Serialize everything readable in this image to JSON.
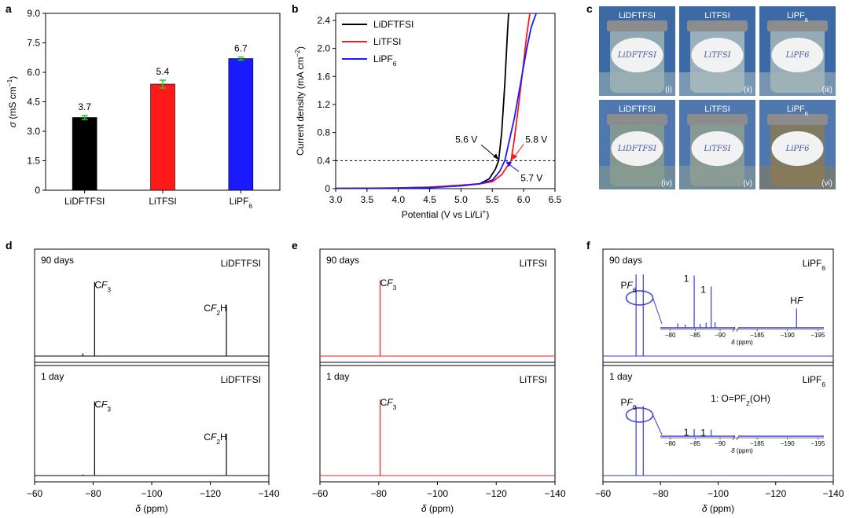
{
  "colors": {
    "black": "#000000",
    "red": "#ff1a1a",
    "blue": "#1a1aff",
    "green": "#17d417",
    "nmr_blue": "#3a3ad8"
  },
  "panels": {
    "a": "a",
    "b": "b",
    "c": "c",
    "d": "d",
    "e": "e",
    "f": "f"
  },
  "chart_data": [
    {
      "id": "a",
      "type": "bar",
      "categories": [
        "LiDFTFSI",
        "LiTFSI",
        "LiPF6"
      ],
      "category_labels": [
        {
          "main": "LiDFTFSI",
          "sub": ""
        },
        {
          "main": "LiTFSI",
          "sub": ""
        },
        {
          "main": "LiPF",
          "sub": "6"
        }
      ],
      "values": [
        3.7,
        5.4,
        6.7
      ],
      "value_labels": [
        "3.7",
        "5.4",
        "6.7"
      ],
      "errors": [
        0.1,
        0.2,
        0.08
      ],
      "bar_colors": [
        "#000000",
        "#ff1a1a",
        "#1a1aff"
      ],
      "ylabel": {
        "sym": "σ",
        "unit": " (mS cm",
        "sup": "−1",
        "close": ")"
      },
      "ylim": [
        0,
        9.0
      ],
      "yticks": [
        0,
        1.5,
        3.0,
        4.5,
        6.0,
        7.5,
        9.0
      ],
      "ytick_labels": [
        "0",
        "1.5",
        "3.0",
        "4.5",
        "6.0",
        "7.5",
        "9.0"
      ]
    },
    {
      "id": "b",
      "type": "line",
      "xlabel": {
        "main": "Potential (V vs Li/Li",
        "sup": "+",
        "close": ")"
      },
      "ylabel": {
        "main": "Current density (mA cm",
        "sup": "−2",
        "close": ")"
      },
      "xlim": [
        3.0,
        6.5
      ],
      "ylim": [
        0,
        2.5
      ],
      "xticks": [
        3.0,
        3.5,
        4.0,
        4.5,
        5.0,
        5.5,
        6.0,
        6.5
      ],
      "xtick_labels": [
        "3.0",
        "3.5",
        "4.0",
        "4.5",
        "5.0",
        "5.5",
        "6.0",
        "6.5"
      ],
      "yticks": [
        0,
        0.4,
        0.8,
        1.2,
        1.6,
        2.0,
        2.4
      ],
      "ytick_labels": [
        "0",
        "0.4",
        "0.8",
        "1.2",
        "1.6",
        "2.0",
        "2.4"
      ],
      "legend": [
        {
          "main": "LiDFTFSI",
          "sub": ""
        },
        {
          "main": "LiTFSI",
          "sub": ""
        },
        {
          "main": "LiPF",
          "sub": "6"
        }
      ],
      "series": [
        {
          "name": "LiDFTFSI",
          "color": "#000000",
          "points": [
            [
              3.0,
              0.005
            ],
            [
              4.0,
              0.01
            ],
            [
              4.5,
              0.02
            ],
            [
              5.0,
              0.04
            ],
            [
              5.3,
              0.07
            ],
            [
              5.45,
              0.14
            ],
            [
              5.55,
              0.28
            ],
            [
              5.6,
              0.4
            ],
            [
              5.65,
              0.8
            ],
            [
              5.7,
              1.5
            ],
            [
              5.74,
              2.2
            ],
            [
              5.76,
              2.5
            ]
          ]
        },
        {
          "name": "LiTFSI",
          "color": "#ff1a1a",
          "points": [
            [
              3.0,
              0.002
            ],
            [
              4.0,
              0.008
            ],
            [
              4.5,
              0.02
            ],
            [
              5.0,
              0.05
            ],
            [
              5.3,
              0.07
            ],
            [
              5.5,
              0.1
            ],
            [
              5.65,
              0.2
            ],
            [
              5.8,
              0.4
            ],
            [
              5.85,
              0.7
            ],
            [
              5.92,
              1.2
            ],
            [
              6.0,
              1.8
            ],
            [
              6.05,
              2.2
            ],
            [
              6.1,
              2.5
            ]
          ]
        },
        {
          "name": "LiPF6",
          "color": "#1a1aff",
          "points": [
            [
              3.0,
              0.001
            ],
            [
              4.0,
              0.006
            ],
            [
              4.5,
              0.015
            ],
            [
              5.0,
              0.04
            ],
            [
              5.3,
              0.07
            ],
            [
              5.5,
              0.12
            ],
            [
              5.62,
              0.25
            ],
            [
              5.7,
              0.4
            ],
            [
              5.75,
              0.6
            ],
            [
              5.85,
              1.0
            ],
            [
              5.95,
              1.5
            ],
            [
              6.05,
              2.0
            ],
            [
              6.12,
              2.3
            ],
            [
              6.2,
              2.5
            ]
          ]
        }
      ],
      "threshold": 0.4,
      "annotations": [
        {
          "text": "5.6 V",
          "x": 5.6,
          "color": "#000000"
        },
        {
          "text": "5.8 V",
          "x": 5.8,
          "color": "#ff1a1a"
        },
        {
          "text": "5.7 V",
          "x": 5.7,
          "color": "#1a1aff"
        }
      ]
    },
    {
      "id": "c",
      "type": "image_grid",
      "tiles": [
        {
          "label": "LiDFTFSI",
          "sub": "",
          "numeral": "(i)",
          "note": "LiDFTFSI",
          "tint": "#9fb3b3"
        },
        {
          "label": "LiTFSI",
          "sub": "",
          "numeral": "(ii)",
          "note": "LiTFSI",
          "tint": "#a9bcbd"
        },
        {
          "label": "LiPF",
          "sub": "6",
          "numeral": "(iii)",
          "note": "LiPF6",
          "tint": "#a4b7b8"
        },
        {
          "label": "LiDFTFSI",
          "sub": "",
          "numeral": "(iv)",
          "note": "LiDFTFSI",
          "tint": "#8a9c8e"
        },
        {
          "label": "LiTFSI",
          "sub": "",
          "numeral": "(v)",
          "note": "LiTFSI",
          "tint": "#8f9f93"
        },
        {
          "label": "LiPF",
          "sub": "6",
          "numeral": "(vi)",
          "note": "LiPF6",
          "tint": "#8a7a55"
        }
      ]
    },
    {
      "id": "d",
      "type": "spectrum",
      "xlabel": "δ (ppm)",
      "xlim": [
        -60,
        -140
      ],
      "xticks": [
        -60,
        -80,
        -100,
        -120,
        -140
      ],
      "xtick_labels": [
        "−60",
        "−80",
        "−100",
        "−120",
        "−140"
      ],
      "color": "#000000",
      "subpanels": [
        {
          "time": "90 days",
          "salt": {
            "main": "LiDFTFSI",
            "sub": ""
          },
          "peaks": [
            {
              "x": -80.5,
              "h": 0.8,
              "label": {
                "pre": "C",
                "it": "F",
                "sub": "3",
                "post": ""
              }
            },
            {
              "x": -125.5,
              "h": 0.55,
              "label": {
                "pre": "C",
                "it": "F",
                "sub": "2",
                "post": "H"
              }
            },
            {
              "x": -76.5,
              "h": 0.03,
              "label": null
            }
          ]
        },
        {
          "time": "1 day",
          "salt": {
            "main": "LiDFTFSI",
            "sub": ""
          },
          "peaks": [
            {
              "x": -80.5,
              "h": 0.8,
              "label": {
                "pre": "C",
                "it": "F",
                "sub": "3",
                "post": ""
              }
            },
            {
              "x": -125.5,
              "h": 0.45,
              "label": {
                "pre": "C",
                "it": "F",
                "sub": "2",
                "post": "H"
              }
            },
            {
              "x": -76.5,
              "h": 0.01,
              "label": null
            }
          ]
        }
      ]
    },
    {
      "id": "e",
      "type": "spectrum",
      "xlabel": "δ (ppm)",
      "xlim": [
        -60,
        -140
      ],
      "xticks": [
        -60,
        -80,
        -100,
        -120,
        -140
      ],
      "xtick_labels": [
        "−60",
        "−80",
        "−100",
        "−120",
        "−140"
      ],
      "color": "#ff1a1a",
      "subpanels": [
        {
          "time": "90 days",
          "salt": {
            "main": "LiTFSI",
            "sub": ""
          },
          "peaks": [
            {
              "x": -80.5,
              "h": 0.82,
              "label": {
                "pre": "C",
                "it": "F",
                "sub": "3",
                "post": ""
              }
            }
          ]
        },
        {
          "time": "1 day",
          "salt": {
            "main": "LiTFSI",
            "sub": ""
          },
          "peaks": [
            {
              "x": -80.5,
              "h": 0.82,
              "label": {
                "pre": "C",
                "it": "F",
                "sub": "3",
                "post": ""
              }
            }
          ]
        }
      ]
    },
    {
      "id": "f",
      "type": "spectrum",
      "xlabel": "δ (ppm)",
      "xlim": [
        -60,
        -140
      ],
      "xticks": [
        -60,
        -80,
        -100,
        -120,
        -140
      ],
      "xtick_labels": [
        "−60",
        "−80",
        "−100",
        "−120",
        "−140"
      ],
      "color": "#3a3ad8",
      "legend_note": {
        "pre": "1: O=PF",
        "sub": "2",
        "post": "(OH)"
      },
      "subpanels": [
        {
          "time": "90 days",
          "salt": {
            "main": "LiPF",
            "sub": "6"
          },
          "pf6_label": {
            "pre": "P",
            "it": "F",
            "sub": "6"
          },
          "peaks": [
            {
              "x": -71.5,
              "h": 0.88
            },
            {
              "x": -74.0,
              "h": 0.88
            }
          ],
          "inset": {
            "xlim_left": [
              -78,
              -93
            ],
            "xlim_right": [
              -182,
              -196
            ],
            "xticks_left": [
              -80,
              -85,
              -90
            ],
            "xtick_labels_left": [
              "−80",
              "−85",
              "−90"
            ],
            "xticks_right": [
              -185,
              -190,
              -195
            ],
            "xtick_labels_right": [
              "−185",
              "−190",
              "−195"
            ],
            "xlabel": "δ (ppm)",
            "peaks": [
              {
                "x": -84.8,
                "h": 0.95,
                "label": "1"
              },
              {
                "x": -88.2,
                "h": 0.75,
                "label": "1"
              },
              {
                "x": -191.5,
                "h": 0.35,
                "label": {
                  "pre": "H",
                  "it": "F"
                }
              },
              {
                "x": -81.5,
                "h": 0.08,
                "label": null
              },
              {
                "x": -83.0,
                "h": 0.06,
                "label": null
              },
              {
                "x": -86.0,
                "h": 0.07,
                "label": null
              },
              {
                "x": -87.2,
                "h": 0.09,
                "label": null
              },
              {
                "x": -89.0,
                "h": 0.1,
                "label": null
              }
            ]
          }
        },
        {
          "time": "1 day",
          "salt": {
            "main": "LiPF",
            "sub": "6"
          },
          "pf6_label": {
            "pre": "P",
            "it": "F",
            "sub": "6"
          },
          "peaks": [
            {
              "x": -71.5,
              "h": 0.75
            },
            {
              "x": -74.0,
              "h": 0.75
            }
          ],
          "inset": {
            "xlim_left": [
              -78,
              -93
            ],
            "xlim_right": [
              -182,
              -196
            ],
            "xticks_left": [
              -80,
              -85,
              -90
            ],
            "xtick_labels_left": [
              "−80",
              "−85",
              "−90"
            ],
            "xticks_right": [
              -185,
              -190,
              -195
            ],
            "xtick_labels_right": [
              "−185",
              "−190",
              "−195"
            ],
            "xlabel": "δ (ppm)",
            "peaks": [
              {
                "x": -84.8,
                "h": 0.22,
                "label": "1"
              },
              {
                "x": -88.2,
                "h": 0.2,
                "label": "1"
              }
            ]
          }
        }
      ]
    }
  ]
}
